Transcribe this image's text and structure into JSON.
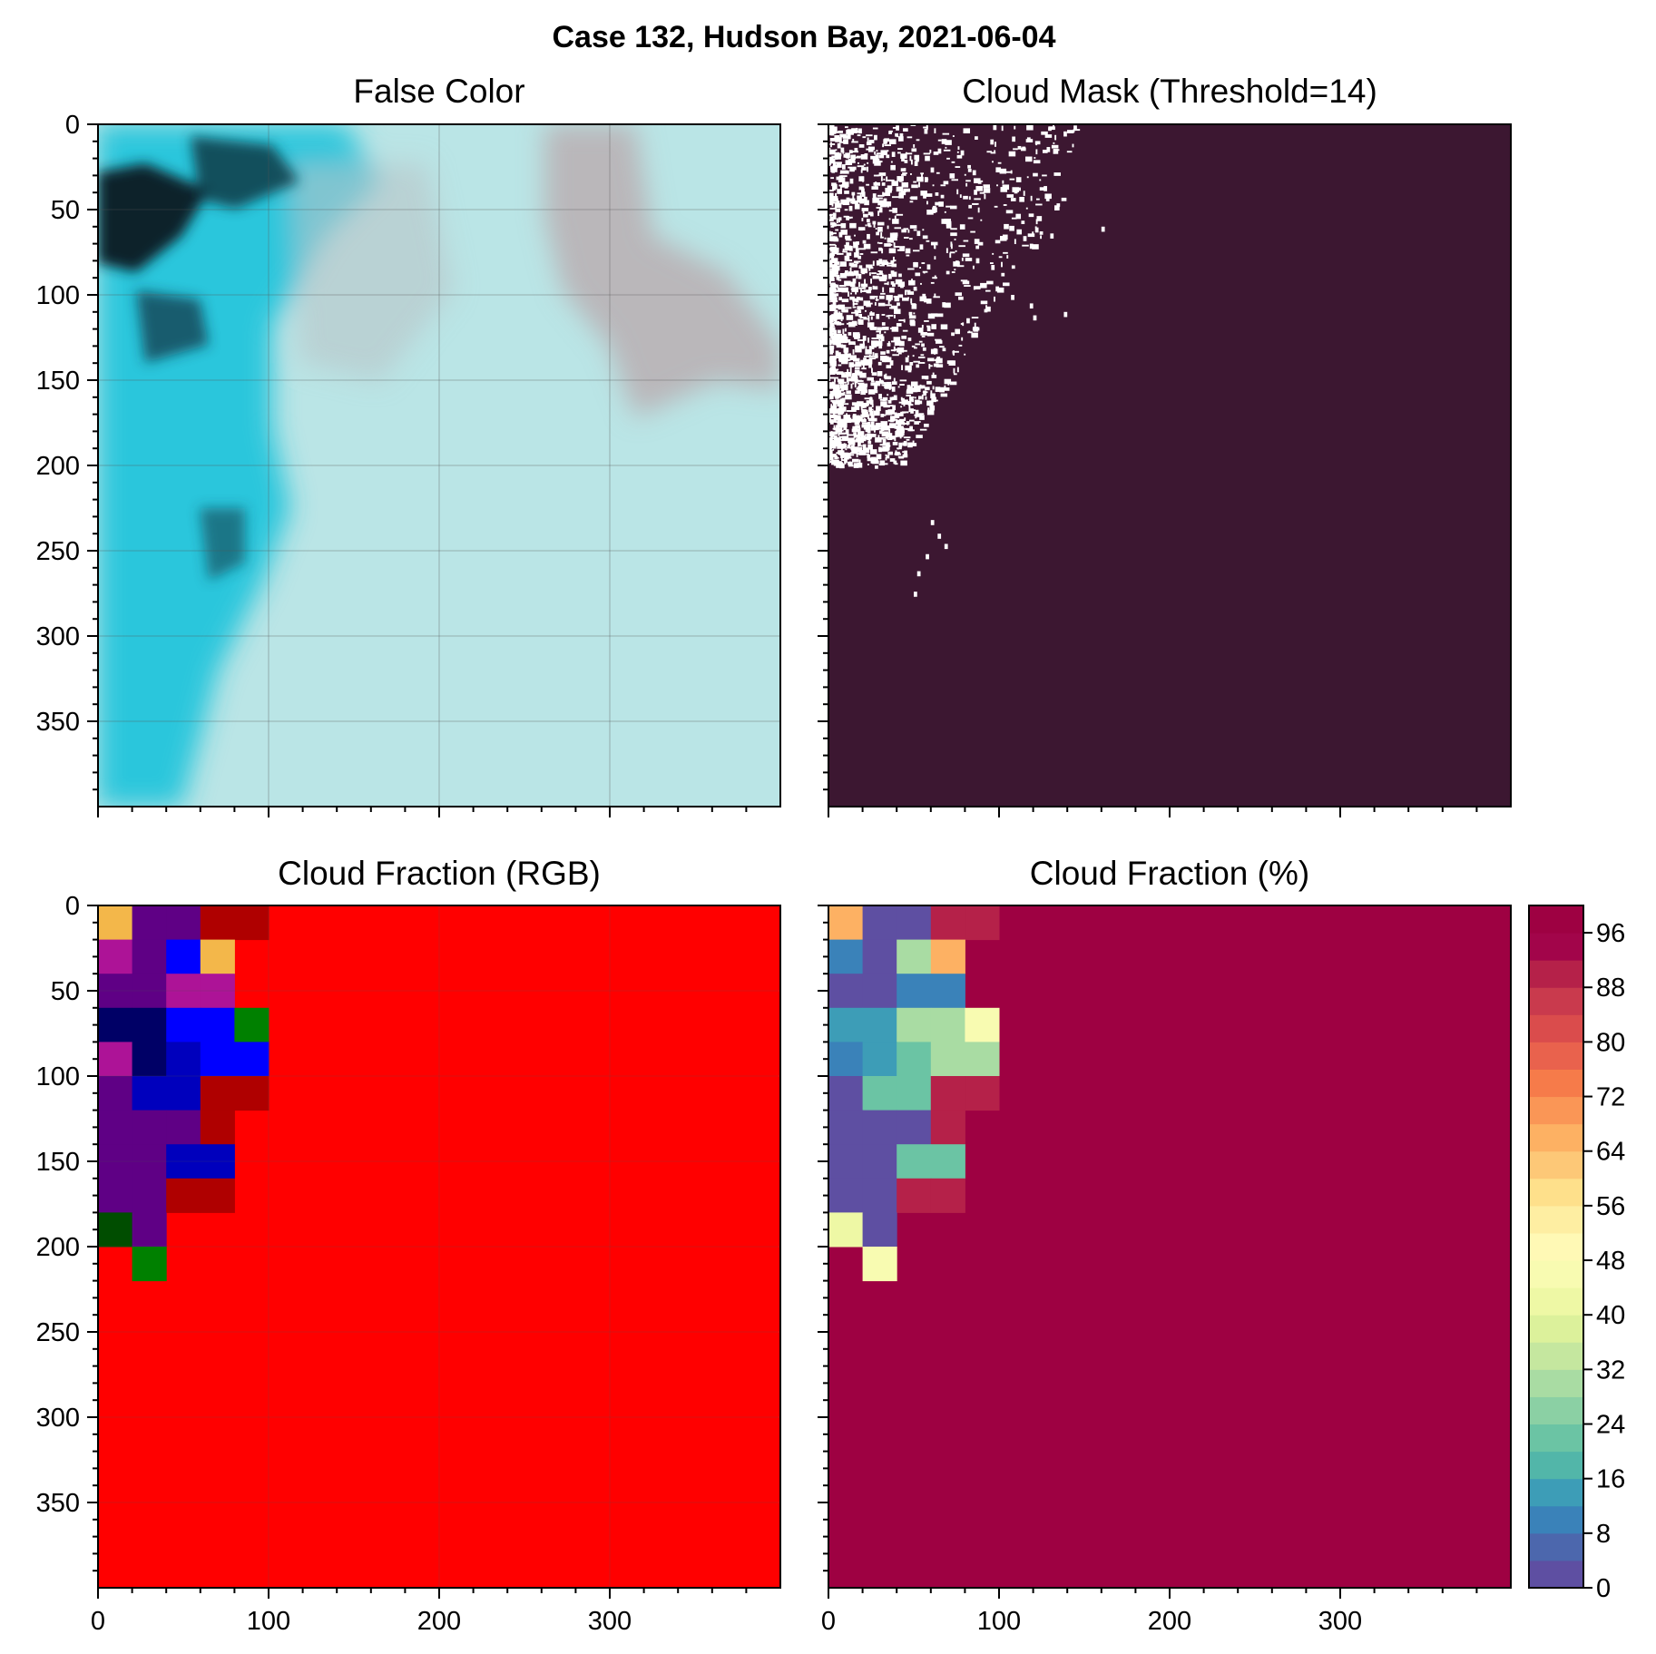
{
  "figure": {
    "suptitle": "Case 132, Hudson Bay, 2021-06-04"
  },
  "chart_data": [
    {
      "type": "image",
      "title": "False Color",
      "xlim": [
        0,
        400
      ],
      "ylim": [
        400,
        0
      ],
      "x_ticks": [
        0,
        100,
        200,
        300
      ],
      "y_ticks": [
        0,
        50,
        100,
        150,
        200,
        250,
        300,
        350
      ],
      "grid": true,
      "description_colors": {
        "cloud_free_ice": "#24c6dc",
        "cloud": "#a9e6e6",
        "dark_water": "#08202a",
        "haze": "#b9a7ab"
      }
    },
    {
      "type": "heatmap",
      "title": "Cloud Mask (Threshold=14)",
      "xlim": [
        0,
        400
      ],
      "ylim": [
        400,
        0
      ],
      "x_ticks": [
        0,
        100,
        200,
        300
      ],
      "y_ticks": [
        0,
        50,
        100,
        150,
        200,
        250,
        300,
        350
      ],
      "values": [
        "cloud",
        "clear"
      ],
      "colors": {
        "cloud": "#3c1731",
        "clear": "#ffffff"
      }
    },
    {
      "type": "heatmap",
      "title": "Cloud Fraction (RGB)",
      "xlim": [
        0,
        400
      ],
      "ylim": [
        400,
        0
      ],
      "x_ticks": [
        0,
        100,
        200,
        300
      ],
      "y_ticks": [
        0,
        50,
        100,
        150,
        200,
        250,
        300,
        350
      ],
      "grid": true,
      "block_size": 20,
      "default_color": "#ff0000",
      "cells": [
        {
          "row": 0,
          "col": 0,
          "color": "#f3b74a"
        },
        {
          "row": 0,
          "col": 1,
          "color": "#5f0085"
        },
        {
          "row": 0,
          "col": 2,
          "color": "#5f0085"
        },
        {
          "row": 0,
          "col": 3,
          "color": "#af0000"
        },
        {
          "row": 0,
          "col": 4,
          "color": "#af0000"
        },
        {
          "row": 1,
          "col": 0,
          "color": "#ad1397"
        },
        {
          "row": 1,
          "col": 1,
          "color": "#5f0085"
        },
        {
          "row": 1,
          "col": 2,
          "color": "#0000ff"
        },
        {
          "row": 1,
          "col": 3,
          "color": "#f3b74a"
        },
        {
          "row": 2,
          "col": 0,
          "color": "#5f0085"
        },
        {
          "row": 2,
          "col": 1,
          "color": "#5f0085"
        },
        {
          "row": 2,
          "col": 2,
          "color": "#ad1397"
        },
        {
          "row": 2,
          "col": 3,
          "color": "#ad1397"
        },
        {
          "row": 3,
          "col": 0,
          "color": "#000066"
        },
        {
          "row": 3,
          "col": 1,
          "color": "#000066"
        },
        {
          "row": 3,
          "col": 2,
          "color": "#0000ff"
        },
        {
          "row": 3,
          "col": 3,
          "color": "#0000ff"
        },
        {
          "row": 3,
          "col": 4,
          "color": "#008000"
        },
        {
          "row": 4,
          "col": 0,
          "color": "#ad1397"
        },
        {
          "row": 4,
          "col": 1,
          "color": "#000066"
        },
        {
          "row": 4,
          "col": 2,
          "color": "#0000bd"
        },
        {
          "row": 4,
          "col": 3,
          "color": "#0000ff"
        },
        {
          "row": 4,
          "col": 4,
          "color": "#0000ff"
        },
        {
          "row": 5,
          "col": 0,
          "color": "#5f0085"
        },
        {
          "row": 5,
          "col": 1,
          "color": "#0000bd"
        },
        {
          "row": 5,
          "col": 2,
          "color": "#0000bd"
        },
        {
          "row": 5,
          "col": 3,
          "color": "#af0000"
        },
        {
          "row": 5,
          "col": 4,
          "color": "#af0000"
        },
        {
          "row": 6,
          "col": 0,
          "color": "#5f0085"
        },
        {
          "row": 6,
          "col": 1,
          "color": "#5f0085"
        },
        {
          "row": 6,
          "col": 2,
          "color": "#5f0085"
        },
        {
          "row": 6,
          "col": 3,
          "color": "#af0000"
        },
        {
          "row": 7,
          "col": 0,
          "color": "#5f0085"
        },
        {
          "row": 7,
          "col": 1,
          "color": "#5f0085"
        },
        {
          "row": 7,
          "col": 2,
          "color": "#0000bd"
        },
        {
          "row": 7,
          "col": 3,
          "color": "#0000bd"
        },
        {
          "row": 8,
          "col": 0,
          "color": "#5f0085"
        },
        {
          "row": 8,
          "col": 1,
          "color": "#5f0085"
        },
        {
          "row": 8,
          "col": 2,
          "color": "#af0000"
        },
        {
          "row": 8,
          "col": 3,
          "color": "#af0000"
        },
        {
          "row": 9,
          "col": 0,
          "color": "#004d00"
        },
        {
          "row": 9,
          "col": 1,
          "color": "#5f0085"
        },
        {
          "row": 10,
          "col": 1,
          "color": "#008000"
        }
      ]
    },
    {
      "type": "heatmap",
      "title": "Cloud Fraction (%)",
      "xlim": [
        0,
        400
      ],
      "ylim": [
        400,
        0
      ],
      "x_ticks": [
        0,
        100,
        200,
        300
      ],
      "y_ticks": [
        0,
        50,
        100,
        150,
        200,
        250,
        300,
        350
      ],
      "block_size": 20,
      "default_value": 100,
      "cells": [
        {
          "row": 0,
          "col": 0,
          "value": 66
        },
        {
          "row": 0,
          "col": 1,
          "value": 2
        },
        {
          "row": 0,
          "col": 2,
          "value": 2
        },
        {
          "row": 0,
          "col": 3,
          "value": 90
        },
        {
          "row": 0,
          "col": 4,
          "value": 90
        },
        {
          "row": 1,
          "col": 0,
          "value": 10
        },
        {
          "row": 1,
          "col": 1,
          "value": 2
        },
        {
          "row": 1,
          "col": 2,
          "value": 30
        },
        {
          "row": 1,
          "col": 3,
          "value": 66
        },
        {
          "row": 2,
          "col": 0,
          "value": 2
        },
        {
          "row": 2,
          "col": 1,
          "value": 2
        },
        {
          "row": 2,
          "col": 2,
          "value": 10
        },
        {
          "row": 2,
          "col": 3,
          "value": 10
        },
        {
          "row": 3,
          "col": 0,
          "value": 14
        },
        {
          "row": 3,
          "col": 1,
          "value": 14
        },
        {
          "row": 3,
          "col": 2,
          "value": 30
        },
        {
          "row": 3,
          "col": 3,
          "value": 30
        },
        {
          "row": 3,
          "col": 4,
          "value": 46
        },
        {
          "row": 4,
          "col": 0,
          "value": 10
        },
        {
          "row": 4,
          "col": 1,
          "value": 14
        },
        {
          "row": 4,
          "col": 2,
          "value": 22
        },
        {
          "row": 4,
          "col": 3,
          "value": 30
        },
        {
          "row": 4,
          "col": 4,
          "value": 30
        },
        {
          "row": 5,
          "col": 0,
          "value": 2
        },
        {
          "row": 5,
          "col": 1,
          "value": 22
        },
        {
          "row": 5,
          "col": 2,
          "value": 22
        },
        {
          "row": 5,
          "col": 3,
          "value": 90
        },
        {
          "row": 5,
          "col": 4,
          "value": 90
        },
        {
          "row": 6,
          "col": 0,
          "value": 2
        },
        {
          "row": 6,
          "col": 1,
          "value": 2
        },
        {
          "row": 6,
          "col": 2,
          "value": 2
        },
        {
          "row": 6,
          "col": 3,
          "value": 90
        },
        {
          "row": 7,
          "col": 0,
          "value": 2
        },
        {
          "row": 7,
          "col": 1,
          "value": 2
        },
        {
          "row": 7,
          "col": 2,
          "value": 22
        },
        {
          "row": 7,
          "col": 3,
          "value": 22
        },
        {
          "row": 8,
          "col": 0,
          "value": 2
        },
        {
          "row": 8,
          "col": 1,
          "value": 2
        },
        {
          "row": 8,
          "col": 2,
          "value": 90
        },
        {
          "row": 8,
          "col": 3,
          "value": 90
        },
        {
          "row": 9,
          "col": 0,
          "value": 42
        },
        {
          "row": 9,
          "col": 1,
          "value": 2
        },
        {
          "row": 10,
          "col": 1,
          "value": 46
        }
      ],
      "colorbar": {
        "min": 0,
        "max": 100,
        "step": 4,
        "ticks": [
          0,
          8,
          16,
          24,
          32,
          40,
          48,
          56,
          64,
          72,
          80,
          88,
          96
        ],
        "colors": [
          "#5e4fa2",
          "#4c67ad",
          "#3a82b9",
          "#3d9db7",
          "#52b6a9",
          "#6bc4a4",
          "#8bd0a4",
          "#a9dca3",
          "#c5e79f",
          "#dcf19b",
          "#eef8a5",
          "#f8fbb1",
          "#fff9b5",
          "#feeea2",
          "#fee08b",
          "#fdc877",
          "#fdb163",
          "#fa9656",
          "#f67b4a",
          "#e9624d",
          "#da4c4c",
          "#c93a4d",
          "#b52149",
          "#a2054a",
          "#9e0142"
        ]
      }
    }
  ]
}
